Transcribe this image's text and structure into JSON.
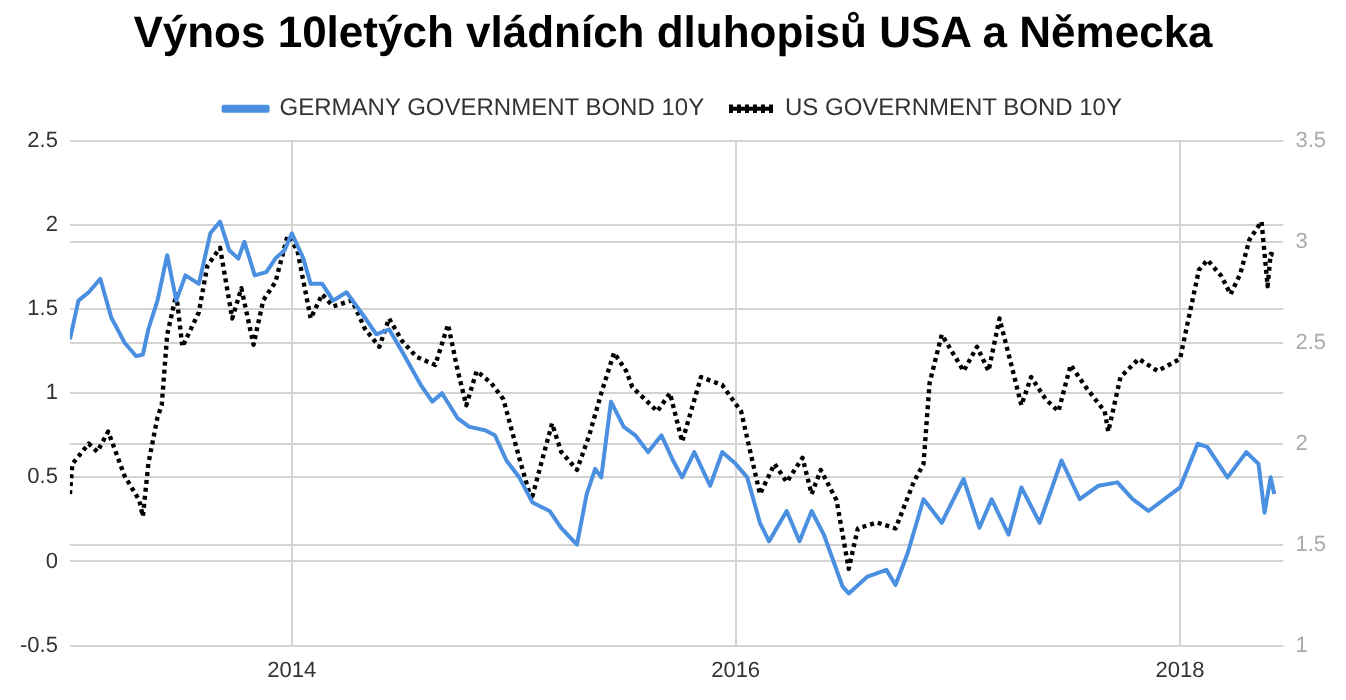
{
  "chart_data": {
    "type": "line",
    "title": "Výnos 10letých vládních dluhopisů USA a Německa",
    "legend": "top",
    "grid": true,
    "marker": "none",
    "xlim": [
      "2013-01-01",
      "2018-06-20"
    ],
    "xticks": [
      {
        "value": "2014-01-01",
        "label": "2014"
      },
      {
        "value": "2016-01-01",
        "label": "2016"
      },
      {
        "value": "2018-01-01",
        "label": "2018"
      }
    ],
    "ylim": [
      -0.5,
      2.5
    ],
    "yticks": [
      -0.5,
      0,
      0.5,
      1,
      1.5,
      2,
      2.5
    ],
    "y2lim": [
      1,
      3.5
    ],
    "y2ticks": [
      1,
      1.5,
      2,
      2.5,
      3,
      3.5
    ],
    "series": [
      {
        "name": "GERMANY GOVERNMENT BOND 10Y",
        "color": "#4a8fe0",
        "line_style": "solid",
        "x": [
          "2013-01-01",
          "2013-01-15",
          "2013-02-01",
          "2013-02-20",
          "2013-03-10",
          "2013-04-01",
          "2013-04-20",
          "2013-05-01",
          "2013-05-10",
          "2013-05-25",
          "2013-06-10",
          "2013-06-25",
          "2013-07-10",
          "2013-08-01",
          "2013-08-20",
          "2013-09-05",
          "2013-09-20",
          "2013-10-05",
          "2013-10-15",
          "2013-11-01",
          "2013-11-20",
          "2013-12-05",
          "2013-12-20",
          "2014-01-01",
          "2014-01-20",
          "2014-02-01",
          "2014-02-20",
          "2014-03-10",
          "2014-04-01",
          "2014-05-01",
          "2014-05-20",
          "2014-06-10",
          "2014-07-01",
          "2014-08-01",
          "2014-08-20",
          "2014-09-05",
          "2014-10-01",
          "2014-10-20",
          "2014-11-15",
          "2014-12-01",
          "2014-12-20",
          "2015-01-10",
          "2015-02-01",
          "2015-03-01",
          "2015-03-20",
          "2015-04-15",
          "2015-05-01",
          "2015-05-15",
          "2015-05-25",
          "2015-06-10",
          "2015-07-01",
          "2015-07-20",
          "2015-08-10",
          "2015-09-01",
          "2015-09-20",
          "2015-10-05",
          "2015-10-25",
          "2015-11-20",
          "2015-12-10",
          "2016-01-01",
          "2016-01-20",
          "2016-02-10",
          "2016-02-25",
          "2016-03-25",
          "2016-04-15",
          "2016-05-05",
          "2016-05-25",
          "2016-06-25",
          "2016-07-05",
          "2016-08-05",
          "2016-09-05",
          "2016-09-20",
          "2016-10-10",
          "2016-11-05",
          "2016-12-05",
          "2017-01-10",
          "2017-02-05",
          "2017-02-25",
          "2017-03-25",
          "2017-04-15",
          "2017-05-15",
          "2017-06-20",
          "2017-07-20",
          "2017-08-20",
          "2017-09-20",
          "2017-10-15",
          "2017-11-10",
          "2018-01-01",
          "2018-01-30",
          "2018-02-15",
          "2018-03-20",
          "2018-04-20",
          "2018-05-10",
          "2018-05-20",
          "2018-05-30",
          "2018-06-05"
        ],
        "values": [
          1.32,
          1.55,
          1.6,
          1.68,
          1.45,
          1.3,
          1.22,
          1.23,
          1.38,
          1.55,
          1.82,
          1.55,
          1.7,
          1.65,
          1.95,
          2.02,
          1.85,
          1.8,
          1.9,
          1.7,
          1.72,
          1.8,
          1.85,
          1.95,
          1.8,
          1.65,
          1.65,
          1.55,
          1.6,
          1.45,
          1.35,
          1.38,
          1.25,
          1.05,
          0.95,
          1.0,
          0.85,
          0.8,
          0.78,
          0.75,
          0.6,
          0.5,
          0.35,
          0.3,
          0.2,
          0.1,
          0.4,
          0.55,
          0.5,
          0.95,
          0.8,
          0.75,
          0.65,
          0.75,
          0.6,
          0.5,
          0.65,
          0.45,
          0.65,
          0.58,
          0.5,
          0.23,
          0.12,
          0.3,
          0.12,
          0.3,
          0.16,
          -0.15,
          -0.19,
          -0.09,
          -0.05,
          -0.14,
          0.05,
          0.37,
          0.23,
          0.49,
          0.2,
          0.37,
          0.16,
          0.44,
          0.23,
          0.6,
          0.37,
          0.45,
          0.47,
          0.37,
          0.3,
          0.44,
          0.7,
          0.68,
          0.5,
          0.65,
          0.58,
          0.29,
          0.5,
          0.4
        ]
      },
      {
        "name": "US GOVERNMENT BOND 10Y",
        "color": "#000000",
        "line_style": "dotted",
        "axis": "y2",
        "x": [
          "2013-01-01",
          "2013-01-05",
          "2013-02-01",
          "2013-02-15",
          "2013-03-05",
          "2013-04-01",
          "2013-04-25",
          "2013-05-01",
          "2013-05-10",
          "2013-05-25",
          "2013-06-01",
          "2013-06-10",
          "2013-06-25",
          "2013-07-05",
          "2013-08-01",
          "2013-08-15",
          "2013-09-05",
          "2013-09-25",
          "2013-10-10",
          "2013-10-30",
          "2013-11-15",
          "2013-12-05",
          "2013-12-25",
          "2014-01-10",
          "2014-02-01",
          "2014-02-20",
          "2014-03-10",
          "2014-04-10",
          "2014-05-01",
          "2014-05-25",
          "2014-06-10",
          "2014-07-01",
          "2014-07-25",
          "2014-08-25",
          "2014-09-15",
          "2014-10-01",
          "2014-10-15",
          "2014-11-01",
          "2014-11-25",
          "2014-12-15",
          "2015-01-10",
          "2015-01-30",
          "2015-02-15",
          "2015-03-05",
          "2015-03-20",
          "2015-04-15",
          "2015-05-05",
          "2015-05-25",
          "2015-06-15",
          "2015-07-05",
          "2015-07-15",
          "2015-08-05",
          "2015-08-25",
          "2015-09-15",
          "2015-10-05",
          "2015-11-05",
          "2015-12-10",
          "2016-01-10",
          "2016-02-10",
          "2016-03-05",
          "2016-03-25",
          "2016-04-20",
          "2016-05-05",
          "2016-05-20",
          "2016-06-15",
          "2016-07-05",
          "2016-07-20",
          "2016-08-20",
          "2016-09-20",
          "2016-10-20",
          "2016-11-05",
          "2016-11-15",
          "2016-12-05",
          "2017-01-10",
          "2017-02-01",
          "2017-02-20",
          "2017-03-10",
          "2017-04-01",
          "2017-04-15",
          "2017-05-01",
          "2017-05-25",
          "2017-06-15",
          "2017-07-05",
          "2017-07-30",
          "2017-08-30",
          "2017-09-05",
          "2017-09-25",
          "2017-10-25",
          "2017-11-25",
          "2018-01-01",
          "2018-01-15",
          "2018-02-01",
          "2018-02-15",
          "2018-03-10",
          "2018-03-25",
          "2018-04-10",
          "2018-04-25",
          "2018-05-15",
          "2018-05-25",
          "2018-05-30",
          "2018-06-10"
        ],
        "values": [
          1.75,
          1.9,
          2.0,
          1.96,
          2.06,
          1.84,
          1.72,
          1.64,
          1.9,
          2.13,
          2.19,
          2.54,
          2.74,
          2.48,
          2.65,
          2.88,
          2.97,
          2.62,
          2.77,
          2.49,
          2.71,
          2.8,
          3.03,
          2.96,
          2.62,
          2.74,
          2.68,
          2.71,
          2.57,
          2.48,
          2.62,
          2.51,
          2.43,
          2.39,
          2.59,
          2.36,
          2.19,
          2.36,
          2.3,
          2.22,
          1.93,
          1.72,
          1.9,
          2.1,
          1.96,
          1.87,
          2.04,
          2.25,
          2.45,
          2.36,
          2.28,
          2.22,
          2.16,
          2.25,
          2.01,
          2.33,
          2.29,
          2.16,
          1.75,
          1.9,
          1.81,
          1.93,
          1.75,
          1.87,
          1.72,
          1.38,
          1.58,
          1.61,
          1.58,
          1.81,
          1.9,
          2.3,
          2.54,
          2.36,
          2.48,
          2.36,
          2.62,
          2.36,
          2.19,
          2.33,
          2.22,
          2.16,
          2.39,
          2.28,
          2.16,
          2.06,
          2.33,
          2.42,
          2.36,
          2.42,
          2.62,
          2.86,
          2.91,
          2.83,
          2.74,
          2.84,
          3.01,
          3.1,
          2.78,
          2.94,
          2.93
        ]
      }
    ]
  }
}
